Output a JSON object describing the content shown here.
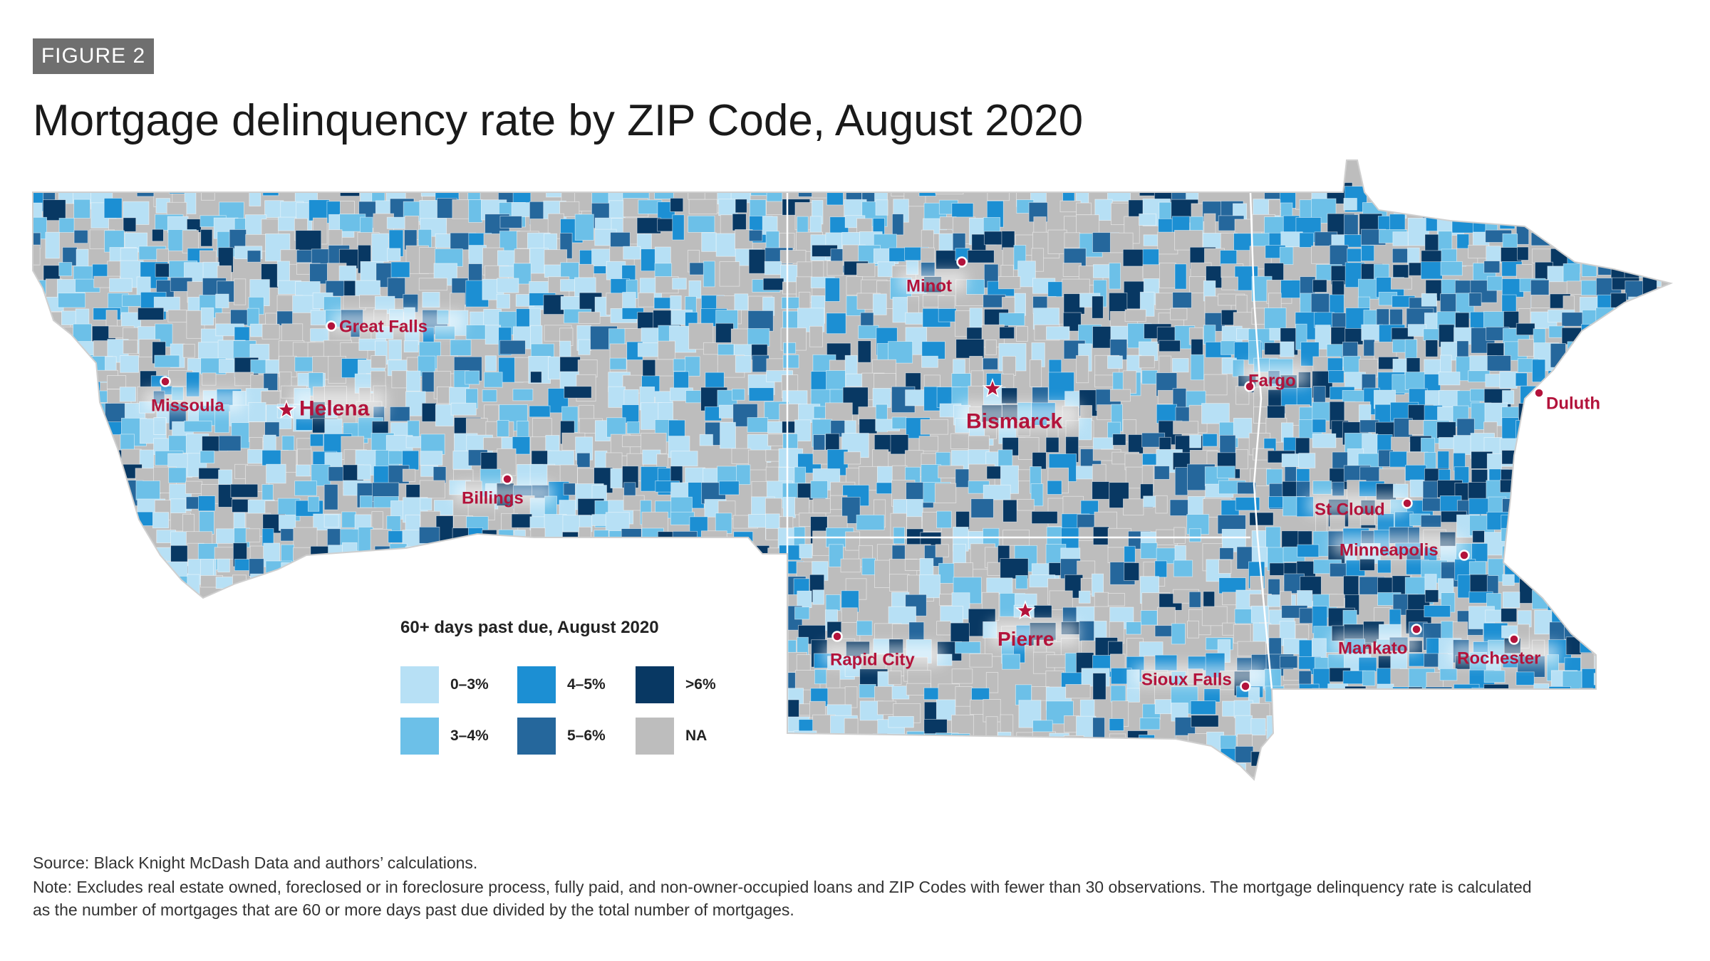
{
  "badge": "FIGURE 2",
  "title": "Mortgage delinquency rate by ZIP Code, August 2020",
  "legend": {
    "title": "60+ days past due, August 2020",
    "items": [
      {
        "label": "0–3%",
        "color": "#b7e0f5"
      },
      {
        "label": "3–4%",
        "color": "#6cc0e8"
      },
      {
        "label": "4–5%",
        "color": "#1c8fd3"
      },
      {
        "label": "5–6%",
        "color": "#25679c"
      },
      {
        "label": ">6%",
        "color": "#083863"
      },
      {
        "label": "NA",
        "color": "#bdbdbd"
      }
    ]
  },
  "cities": [
    {
      "name": "Great Falls",
      "marker": "dot"
    },
    {
      "name": "Missoula",
      "marker": "dot"
    },
    {
      "name": "Helena",
      "marker": "star"
    },
    {
      "name": "Billings",
      "marker": "dot"
    },
    {
      "name": "Minot",
      "marker": "dot"
    },
    {
      "name": "Bismarck",
      "marker": "star"
    },
    {
      "name": "Fargo",
      "marker": "dot"
    },
    {
      "name": "Duluth",
      "marker": "dot"
    },
    {
      "name": "St Cloud",
      "marker": "dot"
    },
    {
      "name": "Minneapolis",
      "marker": "dot"
    },
    {
      "name": "Mankato",
      "marker": "dot"
    },
    {
      "name": "Rochester",
      "marker": "dot"
    },
    {
      "name": "Pierre",
      "marker": "star"
    },
    {
      "name": "Rapid City",
      "marker": "dot"
    },
    {
      "name": "Sioux Falls",
      "marker": "dot"
    }
  ],
  "source": "Source: Black Knight McDash Data and authors’ calculations.",
  "note": "Note: Excludes real estate owned, foreclosed or in foreclosure process, fully paid, and non-owner-occupied loans and ZIP Codes with fewer than 30 observations. The mortgage delinquency rate is calculated as the number of mortgages that are 60 or more days past due divided by the total number of mortgages."
}
